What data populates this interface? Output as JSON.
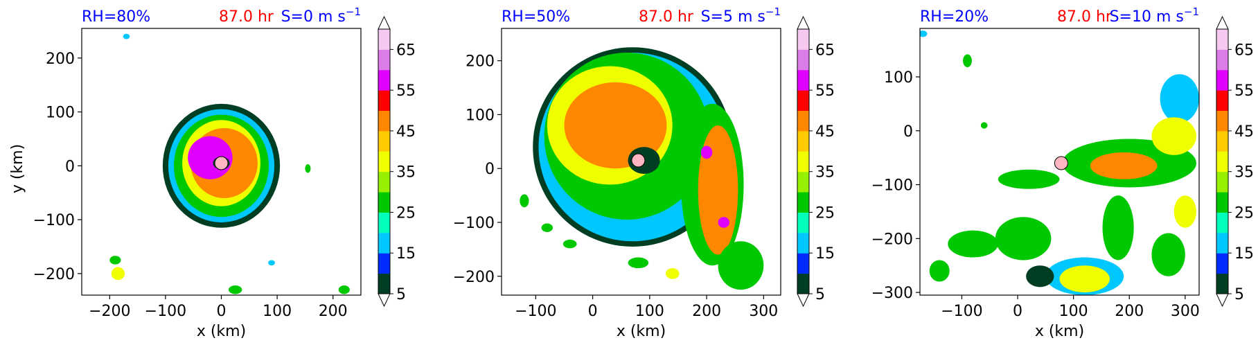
{
  "figure": {
    "colorbar_ticks": [
      5,
      15,
      25,
      35,
      45,
      55,
      65
    ],
    "colorbar_levels": [
      5,
      10,
      15,
      20,
      25,
      30,
      35,
      40,
      45,
      50,
      55,
      60,
      65,
      70
    ],
    "colorbar_colors": [
      "#003e23",
      "#002cff",
      "#00c8ff",
      "#00ffb8",
      "#00c800",
      "#96f000",
      "#f0ff00",
      "#ffcc00",
      "#ff8800",
      "#ff0000",
      "#e000ff",
      "#dc7ce8",
      "#f5c8f0"
    ],
    "marker_color": "#ffb6c1",
    "title_colors": {
      "left": "#0000ff",
      "center": "#ff0000",
      "right": "#0000ff"
    }
  },
  "chart_data": [
    {
      "type": "heatmap",
      "title_left": "RH=80%",
      "title_center": "87.0 hr",
      "title_right": "S=0 m s",
      "title_right_sup": "−1",
      "xlabel": "x (km)",
      "ylabel": "y (km)",
      "xlim": [
        -250,
        250
      ],
      "ylim": [
        -240,
        255
      ],
      "xticks": [
        -200,
        -100,
        0,
        100,
        200
      ],
      "yticks": [
        -200,
        -100,
        0,
        100,
        200
      ],
      "xticklabels": [
        "−200",
        "−100",
        "0",
        "100",
        "200"
      ],
      "yticklabels": [
        "−200",
        "−100",
        "0",
        "100",
        "200"
      ],
      "center": [
        0,
        5
      ],
      "pattern": "compact annulus",
      "cells": [
        {
          "x": 0,
          "y": 0,
          "rx": 105,
          "ry": 115,
          "level": 5
        },
        {
          "x": 0,
          "y": 0,
          "rx": 95,
          "ry": 105,
          "level": 15
        },
        {
          "x": 0,
          "y": 0,
          "rx": 85,
          "ry": 95,
          "level": 25
        },
        {
          "x": 0,
          "y": 5,
          "rx": 70,
          "ry": 80,
          "level": 35
        },
        {
          "x": 5,
          "y": 5,
          "rx": 60,
          "ry": 65,
          "level": 45
        },
        {
          "x": -20,
          "y": 15,
          "rx": 40,
          "ry": 40,
          "level": 55
        },
        {
          "x": 0,
          "y": 5,
          "rx": 15,
          "ry": 12,
          "level": 5
        },
        {
          "x": -190,
          "y": -175,
          "rx": 10,
          "ry": 8,
          "level": 25
        },
        {
          "x": -185,
          "y": -200,
          "rx": 12,
          "ry": 12,
          "level": 35
        },
        {
          "x": 25,
          "y": -230,
          "rx": 12,
          "ry": 8,
          "level": 25
        },
        {
          "x": 220,
          "y": -230,
          "rx": 10,
          "ry": 8,
          "level": 25
        },
        {
          "x": -170,
          "y": 240,
          "rx": 6,
          "ry": 5,
          "level": 15
        },
        {
          "x": 155,
          "y": -5,
          "rx": 5,
          "ry": 8,
          "level": 25
        },
        {
          "x": 90,
          "y": -180,
          "rx": 6,
          "ry": 5,
          "level": 15
        }
      ]
    },
    {
      "type": "heatmap",
      "title_left": "RH=50%",
      "title_center": "87.0 hr",
      "title_right": "S=5 m s",
      "title_right_sup": "−1",
      "xlabel": "x (km)",
      "ylabel": "",
      "xlim": [
        -160,
        330
      ],
      "ylim": [
        -235,
        260
      ],
      "xticks": [
        -100,
        0,
        100,
        200,
        300
      ],
      "yticks": [
        -200,
        -100,
        0,
        100,
        200
      ],
      "xticklabels": [
        "−100",
        "0",
        "100",
        "200",
        "300"
      ],
      "yticklabels": [
        "−200",
        "−100",
        "0",
        "100",
        "200"
      ],
      "center": [
        80,
        15
      ],
      "pattern": "broad spiral rain bands",
      "cells": [
        {
          "x": 70,
          "y": 40,
          "rx": 175,
          "ry": 185,
          "level": 5
        },
        {
          "x": 70,
          "y": 40,
          "rx": 165,
          "ry": 175,
          "level": 15
        },
        {
          "x": 60,
          "y": 60,
          "rx": 145,
          "ry": 155,
          "level": 25
        },
        {
          "x": 30,
          "y": 80,
          "rx": 110,
          "ry": 110,
          "level": 35
        },
        {
          "x": 40,
          "y": 80,
          "rx": 90,
          "ry": 80,
          "level": 45
        },
        {
          "x": 90,
          "y": 15,
          "rx": 28,
          "ry": 25,
          "level": 5
        },
        {
          "x": 210,
          "y": -30,
          "rx": 55,
          "ry": 150,
          "level": 25
        },
        {
          "x": 220,
          "y": -40,
          "rx": 35,
          "ry": 120,
          "level": 45
        },
        {
          "x": 200,
          "y": 30,
          "rx": 10,
          "ry": 12,
          "level": 55
        },
        {
          "x": 230,
          "y": -100,
          "rx": 10,
          "ry": 10,
          "level": 55
        },
        {
          "x": 260,
          "y": -180,
          "rx": 40,
          "ry": 45,
          "level": 25
        },
        {
          "x": -80,
          "y": -110,
          "rx": 10,
          "ry": 8,
          "level": 25
        },
        {
          "x": -40,
          "y": -140,
          "rx": 12,
          "ry": 8,
          "level": 25
        },
        {
          "x": -120,
          "y": -60,
          "rx": 8,
          "ry": 12,
          "level": 25
        },
        {
          "x": 80,
          "y": -175,
          "rx": 18,
          "ry": 10,
          "level": 25
        },
        {
          "x": 140,
          "y": -195,
          "rx": 12,
          "ry": 10,
          "level": 35
        }
      ]
    },
    {
      "type": "heatmap",
      "title_left": "RH=20%",
      "title_center": "87.0 hr",
      "title_right": "S=10 m s",
      "title_right_sup": "−1",
      "xlabel": "x (km)",
      "ylabel": "",
      "xlim": [
        -175,
        325
      ],
      "ylim": [
        -305,
        190
      ],
      "xticks": [
        -100,
        0,
        100,
        200,
        300
      ],
      "yticks": [
        -300,
        -200,
        -100,
        0,
        100
      ],
      "xticklabels": [
        "−100",
        "0",
        "100",
        "200",
        "300"
      ],
      "yticklabels": [
        "−300",
        "−200",
        "−100",
        "0",
        "100"
      ],
      "center": [
        78,
        -60
      ],
      "pattern": "scattered convection east and south",
      "cells": [
        {
          "x": 200,
          "y": -60,
          "rx": 120,
          "ry": 45,
          "level": 25
        },
        {
          "x": 190,
          "y": -65,
          "rx": 60,
          "ry": 25,
          "level": 45
        },
        {
          "x": 290,
          "y": 60,
          "rx": 35,
          "ry": 45,
          "level": 15
        },
        {
          "x": 280,
          "y": -10,
          "rx": 40,
          "ry": 35,
          "level": 35
        },
        {
          "x": 180,
          "y": -180,
          "rx": 28,
          "ry": 60,
          "level": 25
        },
        {
          "x": 120,
          "y": -270,
          "rx": 70,
          "ry": 35,
          "level": 15
        },
        {
          "x": 120,
          "y": -275,
          "rx": 45,
          "ry": 25,
          "level": 35
        },
        {
          "x": 10,
          "y": -200,
          "rx": 50,
          "ry": 40,
          "level": 25
        },
        {
          "x": -80,
          "y": -210,
          "rx": 45,
          "ry": 25,
          "level": 25
        },
        {
          "x": 20,
          "y": -90,
          "rx": 55,
          "ry": 18,
          "level": 25
        },
        {
          "x": 40,
          "y": -270,
          "rx": 25,
          "ry": 20,
          "level": 5
        },
        {
          "x": -140,
          "y": -260,
          "rx": 18,
          "ry": 20,
          "level": 25
        },
        {
          "x": 270,
          "y": -230,
          "rx": 30,
          "ry": 40,
          "level": 25
        },
        {
          "x": 300,
          "y": -150,
          "rx": 20,
          "ry": 30,
          "level": 35
        },
        {
          "x": -170,
          "y": 180,
          "rx": 8,
          "ry": 6,
          "level": 15
        },
        {
          "x": -90,
          "y": 130,
          "rx": 8,
          "ry": 12,
          "level": 25
        },
        {
          "x": -60,
          "y": 10,
          "rx": 6,
          "ry": 6,
          "level": 25
        }
      ]
    }
  ]
}
